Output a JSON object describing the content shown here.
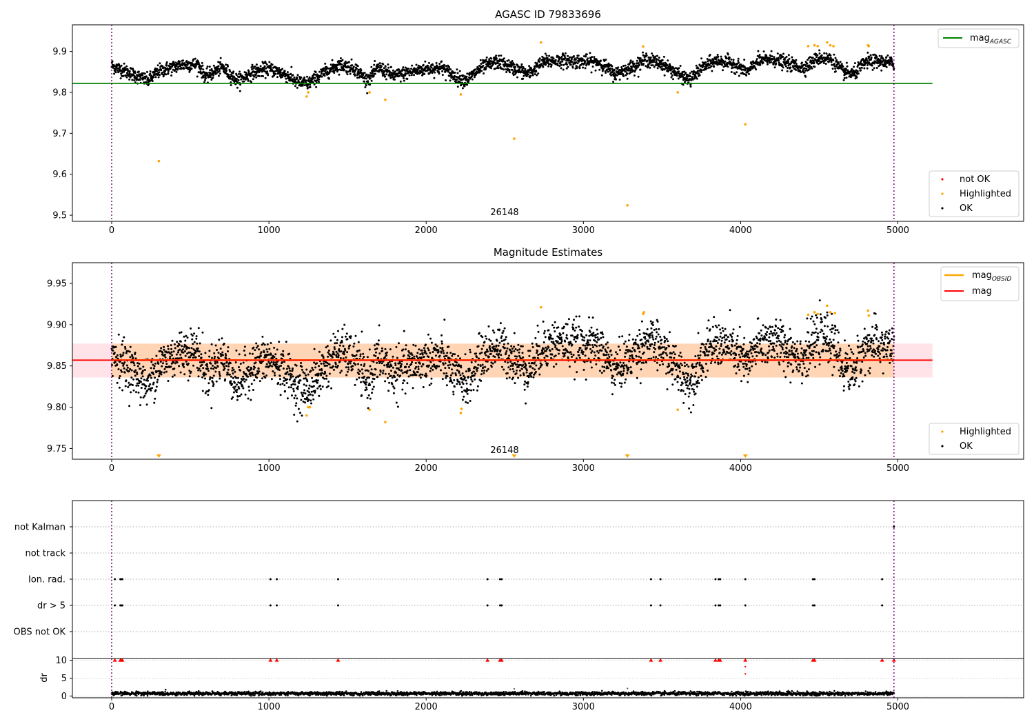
{
  "chart_data": [
    {
      "type": "scatter",
      "title": "AGASC ID 79833696",
      "xlabel": "",
      "ylabel": "",
      "xlim": [
        -250,
        5800
      ],
      "ylim": [
        9.485,
        9.965
      ],
      "xticks": [
        0,
        1000,
        2000,
        3000,
        4000,
        5000
      ],
      "xtick_labels": [
        "0",
        "1000",
        "2000",
        "3000",
        "4000",
        "5000"
      ],
      "yticks": [
        9.5,
        9.6,
        9.7,
        9.8,
        9.9
      ],
      "ytick_labels": [
        "9.5",
        "9.6",
        "9.7",
        "9.8",
        "9.9"
      ],
      "obs_bounds": [
        0,
        4975
      ],
      "annotation": {
        "text": "26148",
        "x": 2487,
        "y": 9.492
      },
      "mag_agasc": {
        "value": 9.822,
        "x_range": [
          -250,
          5220
        ],
        "color": "#008000"
      },
      "legend_upper": {
        "placement": "upper right",
        "entries": [
          {
            "label": "mag",
            "sub": "AGASC",
            "color": "#008000",
            "marker": "line"
          }
        ]
      },
      "legend_lower": {
        "placement": "lower right",
        "entries": [
          {
            "label": "not OK",
            "color": "#ff0000",
            "marker": "dot"
          },
          {
            "label": "Highlighted",
            "color": "#ffa500",
            "marker": "dot"
          },
          {
            "label": "OK",
            "color": "#000000",
            "marker": "dot"
          }
        ]
      },
      "ok_series": {
        "name": "OK",
        "color": "#000000",
        "x_range": [
          0,
          4975
        ],
        "profile": [
          [
            0,
            9.865
          ],
          [
            100,
            9.85
          ],
          [
            230,
            9.828
          ],
          [
            300,
            9.852
          ],
          [
            450,
            9.868
          ],
          [
            550,
            9.868
          ],
          [
            600,
            9.838
          ],
          [
            700,
            9.862
          ],
          [
            800,
            9.828
          ],
          [
            900,
            9.85
          ],
          [
            1000,
            9.858
          ],
          [
            1100,
            9.845
          ],
          [
            1180,
            9.825
          ],
          [
            1250,
            9.822
          ],
          [
            1350,
            9.848
          ],
          [
            1450,
            9.868
          ],
          [
            1550,
            9.858
          ],
          [
            1620,
            9.83
          ],
          [
            1700,
            9.86
          ],
          [
            1800,
            9.84
          ],
          [
            1900,
            9.85
          ],
          [
            2000,
            9.858
          ],
          [
            2100,
            9.86
          ],
          [
            2200,
            9.835
          ],
          [
            2260,
            9.83
          ],
          [
            2350,
            9.86
          ],
          [
            2450,
            9.875
          ],
          [
            2550,
            9.86
          ],
          [
            2650,
            9.845
          ],
          [
            2750,
            9.875
          ],
          [
            2850,
            9.878
          ],
          [
            3000,
            9.875
          ],
          [
            3100,
            9.873
          ],
          [
            3200,
            9.845
          ],
          [
            3300,
            9.86
          ],
          [
            3400,
            9.88
          ],
          [
            3500,
            9.87
          ],
          [
            3600,
            9.845
          ],
          [
            3680,
            9.83
          ],
          [
            3750,
            9.86
          ],
          [
            3850,
            9.878
          ],
          [
            3950,
            9.87
          ],
          [
            4050,
            9.85
          ],
          [
            4100,
            9.875
          ],
          [
            4200,
            9.882
          ],
          [
            4300,
            9.87
          ],
          [
            4400,
            9.86
          ],
          [
            4500,
            9.885
          ],
          [
            4580,
            9.88
          ],
          [
            4650,
            9.85
          ],
          [
            4720,
            9.845
          ],
          [
            4800,
            9.875
          ],
          [
            4900,
            9.875
          ],
          [
            4975,
            9.87
          ]
        ],
        "noise": 0.012
      },
      "highlighted": {
        "name": "Highlighted",
        "color": "#ffa500",
        "points": [
          [
            300,
            9.632
          ],
          [
            1240,
            9.79
          ],
          [
            1250,
            9.8
          ],
          [
            1640,
            9.8
          ],
          [
            1740,
            9.782
          ],
          [
            2220,
            9.795
          ],
          [
            2560,
            9.687
          ],
          [
            2730,
            9.922
          ],
          [
            3280,
            9.524
          ],
          [
            3380,
            9.912
          ],
          [
            3600,
            9.8
          ],
          [
            4030,
            9.722
          ],
          [
            4430,
            9.913
          ],
          [
            4470,
            9.915
          ],
          [
            4490,
            9.913
          ],
          [
            4550,
            9.922
          ],
          [
            4570,
            9.915
          ],
          [
            4590,
            9.913
          ],
          [
            4810,
            9.915
          ],
          [
            4815,
            9.913
          ]
        ]
      },
      "not_ok": {
        "name": "not OK",
        "color": "#ff0000",
        "points": []
      }
    },
    {
      "type": "scatter",
      "title": "Magnitude Estimates",
      "xlabel": "",
      "ylabel": "",
      "xlim": [
        -250,
        5800
      ],
      "ylim": [
        9.737,
        9.975
      ],
      "xticks": [
        0,
        1000,
        2000,
        3000,
        4000,
        5000
      ],
      "xtick_labels": [
        "0",
        "1000",
        "2000",
        "3000",
        "4000",
        "5000"
      ],
      "yticks": [
        9.75,
        9.8,
        9.85,
        9.9,
        9.95
      ],
      "ytick_labels": [
        "9.75",
        "9.80",
        "9.85",
        "9.90",
        "9.95"
      ],
      "obs_bounds": [
        0,
        4975
      ],
      "annotation": {
        "text": "26148",
        "x": 2487,
        "y": 9.743
      },
      "mag": {
        "value": 9.857,
        "x_range": [
          -250,
          5220
        ],
        "color": "#ff0000"
      },
      "mag_band": {
        "lo": 9.836,
        "hi": 9.877,
        "x_range": [
          -250,
          5220
        ],
        "color": "#ffc0cb"
      },
      "mag_obsid": {
        "value": 9.857,
        "lo": 9.836,
        "hi": 9.877,
        "x_range": [
          0,
          4975
        ],
        "color": "#ffa500"
      },
      "legend_upper": {
        "placement": "upper right",
        "entries": [
          {
            "label": "mag",
            "sub": "OBSID",
            "color": "#ffa500",
            "marker": "line"
          },
          {
            "label": "mag",
            "sub": "",
            "color": "#ff0000",
            "marker": "line"
          }
        ]
      },
      "legend_lower": {
        "placement": "lower right",
        "entries": [
          {
            "label": "Highlighted",
            "color": "#ffa500",
            "marker": "dot"
          },
          {
            "label": "OK",
            "color": "#000000",
            "marker": "dot"
          }
        ]
      },
      "ok_series": {
        "name": "OK",
        "color": "#000000",
        "x_range": [
          0,
          4975
        ],
        "noise": 0.014
      },
      "highlighted": {
        "name": "Highlighted",
        "color": "#ffa500",
        "points": [
          [
            1240,
            9.79
          ],
          [
            1250,
            9.8
          ],
          [
            1260,
            9.8
          ],
          [
            1640,
            9.797
          ],
          [
            1740,
            9.782
          ],
          [
            2220,
            9.793
          ],
          [
            2225,
            9.798
          ],
          [
            2730,
            9.921
          ],
          [
            3380,
            9.913
          ],
          [
            3385,
            9.915
          ],
          [
            3600,
            9.797
          ],
          [
            4430,
            9.912
          ],
          [
            4470,
            9.915
          ],
          [
            4490,
            9.913
          ],
          [
            4550,
            9.923
          ],
          [
            4570,
            9.915
          ],
          [
            4600,
            9.914
          ],
          [
            4810,
            9.917
          ],
          [
            4815,
            9.911
          ]
        ]
      },
      "off_scale_markers": [
        300,
        2560,
        3280,
        4030
      ]
    },
    {
      "type": "scatter",
      "title": "",
      "xlabel": "",
      "ylabel": "",
      "xlim": [
        -250,
        5800
      ],
      "categories": [
        "not Kalman",
        "not track",
        "Ion. rad.",
        "dr > 5",
        "OBS not OK"
      ],
      "obs_bounds": [
        0,
        4975
      ],
      "flag_events": {
        "Ion. rad.": [
          20,
          55,
          60,
          68,
          1010,
          1050,
          1440,
          2390,
          2470,
          2480,
          3430,
          3490,
          3840,
          3860,
          3870,
          4030,
          4460,
          4470,
          4900
        ],
        "dr > 5": [
          20,
          55,
          60,
          68,
          1010,
          1050,
          1440,
          2390,
          2470,
          2480,
          3430,
          3490,
          3840,
          3860,
          3870,
          4030,
          4460,
          4470,
          4900
        ],
        "not Kalman": [
          4975
        ]
      }
    },
    {
      "type": "scatter",
      "title": "",
      "xlabel": "",
      "ylabel": "dr",
      "xlim": [
        -250,
        5800
      ],
      "ylim": [
        -0.5,
        10.5
      ],
      "xticks": [
        0,
        1000,
        2000,
        3000,
        4000,
        5000
      ],
      "xtick_labels": [
        "0",
        "1000",
        "2000",
        "3000",
        "4000",
        "5000"
      ],
      "yticks": [
        0,
        5,
        10
      ],
      "ytick_labels": [
        "0",
        "5",
        "10"
      ],
      "obs_bounds": [
        0,
        4975
      ],
      "clipped_points": {
        "color": "#ff0000",
        "x": [
          20,
          55,
          60,
          68,
          1010,
          1050,
          1440,
          2390,
          2470,
          2480,
          3430,
          3490,
          3840,
          3860,
          3870,
          4030,
          4460,
          4470,
          4900,
          4975
        ],
        "y": 10
      },
      "extra_points": [
        [
          4030,
          8.2
        ],
        [
          4030,
          6.2
        ],
        [
          2560,
          2.0
        ],
        [
          3280,
          2.1
        ]
      ],
      "baseline": {
        "mean": 0.7,
        "noise": 0.25
      }
    }
  ]
}
